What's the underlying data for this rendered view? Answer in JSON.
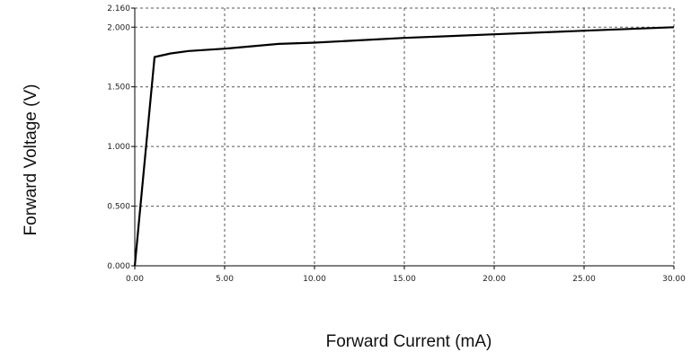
{
  "chart_data": {
    "type": "line",
    "title": "",
    "xlabel": "Forward Current (mA)",
    "ylabel": "Forward Voltage (V)",
    "xlim": [
      0,
      30
    ],
    "ylim": [
      0,
      2.16
    ],
    "x_ticks": [
      0,
      5,
      10,
      15,
      20,
      25,
      30
    ],
    "x_tick_labels": [
      "0.00",
      "5.00",
      "10.00",
      "15.00",
      "20.00",
      "25.00",
      "30.00"
    ],
    "y_ticks": [
      0,
      0.5,
      1.0,
      1.5,
      2.0,
      2.16
    ],
    "y_tick_labels": [
      "0.000",
      "0.500",
      "1.000",
      "1.500",
      "2.000",
      "2.160"
    ],
    "grid": true,
    "series": [
      {
        "x": [
          0,
          1.1,
          2,
          3,
          5,
          8,
          10,
          15,
          20,
          25,
          30
        ],
        "y": [
          0,
          1.75,
          1.78,
          1.8,
          1.82,
          1.86,
          1.87,
          1.91,
          1.94,
          1.97,
          2.0
        ]
      }
    ]
  }
}
